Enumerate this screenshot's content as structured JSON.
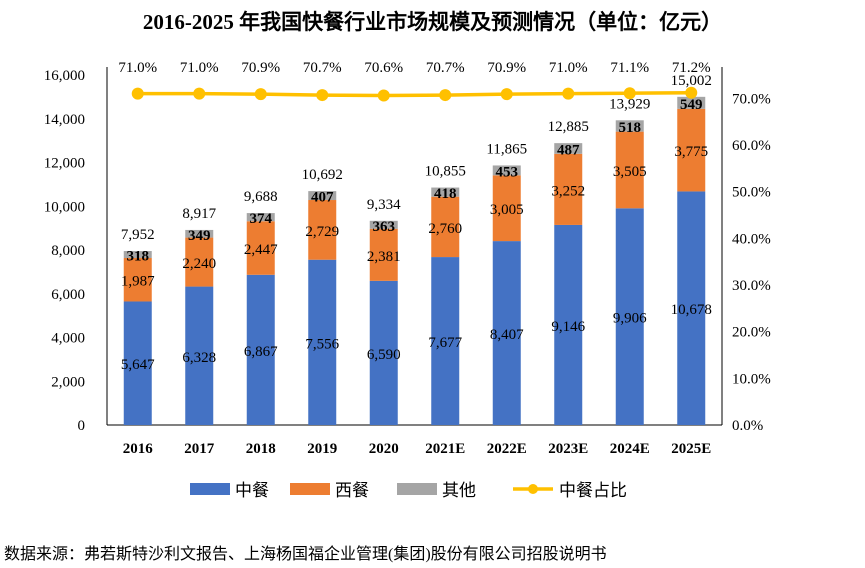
{
  "title": "2016-2025 年我国快餐行业市场规模及预测情况（单位：亿元）",
  "source": "数据来源：弗若斯特沙利文报告、上海杨国福企业管理(集团)股份有限公司招股说明书",
  "chart_data": {
    "type": "bar",
    "stacked": true,
    "categories": [
      "2016",
      "2017",
      "2018",
      "2019",
      "2020",
      "2021E",
      "2022E",
      "2023E",
      "2024E",
      "2025E"
    ],
    "series": [
      {
        "name": "中餐",
        "color": "#4472C4",
        "values": [
          5647,
          6328,
          6867,
          7556,
          6590,
          7677,
          8407,
          9146,
          9906,
          10678
        ],
        "labels": [
          "5,647",
          "6,328",
          "6,867",
          "7,556",
          "6,590",
          "7,677",
          "8,407",
          "9,146",
          "9,906",
          "10,678"
        ]
      },
      {
        "name": "西餐",
        "color": "#ED7D31",
        "values": [
          1987,
          2240,
          2447,
          2729,
          2381,
          2760,
          3005,
          3252,
          3505,
          3775
        ],
        "labels": [
          "1,987",
          "2,240",
          "2,447",
          "2,729",
          "2,381",
          "2,760",
          "3,005",
          "3,252",
          "3,505",
          "3,775"
        ]
      },
      {
        "name": "其他",
        "color": "#A5A5A5",
        "values": [
          318,
          349,
          374,
          407,
          363,
          418,
          453,
          487,
          518,
          549
        ],
        "labels": [
          "318",
          "349",
          "374",
          "407",
          "363",
          "418",
          "453",
          "487",
          "518",
          "549"
        ]
      }
    ],
    "totals": [
      "7,952",
      "8,917",
      "9,688",
      "10,692",
      "9,334",
      "10,855",
      "11,865",
      "12,885",
      "13,929",
      "15,002"
    ],
    "line": {
      "name": "中餐占比",
      "color": "#FFC000",
      "axis": "right",
      "values": [
        71.0,
        71.0,
        70.9,
        70.7,
        70.6,
        70.7,
        70.9,
        71.0,
        71.1,
        71.2
      ],
      "labels": [
        "71.0%",
        "71.0%",
        "70.9%",
        "70.7%",
        "70.6%",
        "70.7%",
        "70.9%",
        "71.0%",
        "71.1%",
        "71.2%"
      ]
    },
    "y_left": {
      "range": [
        0,
        16000
      ],
      "ticks": [
        "0",
        "2,000",
        "4,000",
        "6,000",
        "8,000",
        "10,000",
        "12,000",
        "14,000",
        "16,000"
      ]
    },
    "y_right": {
      "range": [
        0,
        75
      ],
      "ticks": [
        "0.0%",
        "10.0%",
        "20.0%",
        "30.0%",
        "40.0%",
        "50.0%",
        "60.0%",
        "70.0%"
      ]
    },
    "grid": false,
    "legend": "bottom"
  }
}
